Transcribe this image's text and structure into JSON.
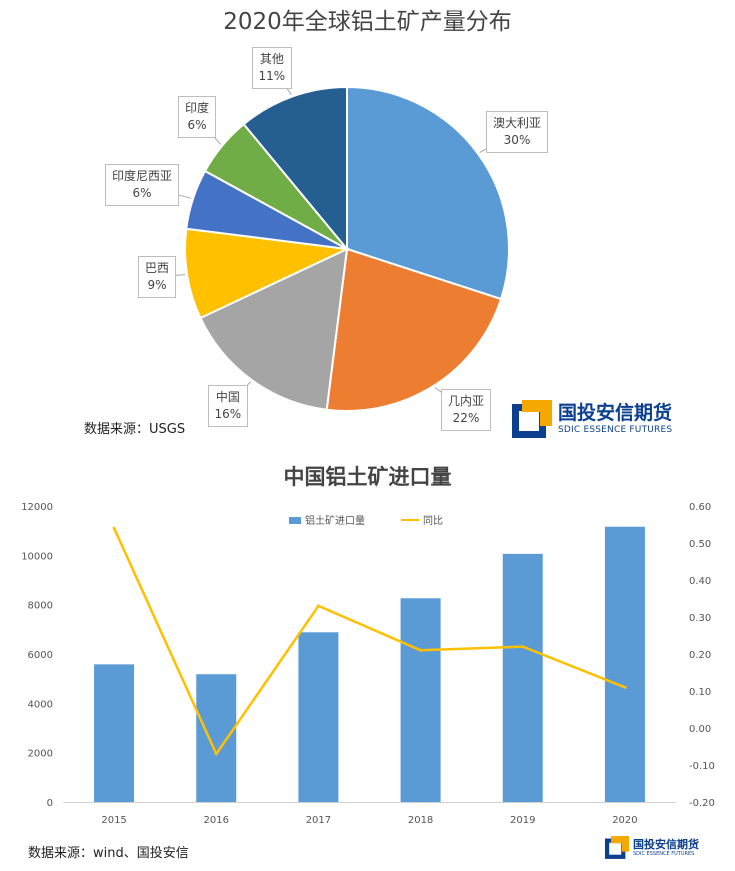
{
  "pie_chart": {
    "title": "2020年全球铝土矿产量分布",
    "source": "数据来源：USGS"
  },
  "bar_chart": {
    "title": "中国铝土矿进口量",
    "source": "数据来源：wind、国投安信",
    "legend": {
      "bars": "铝土矿进口量",
      "line": "同比"
    }
  },
  "logo": {
    "name_cn": "国投安信期货",
    "name_en": "SDIC ESSENCE FUTURES"
  },
  "colors": {
    "australia": "#5b9bd5",
    "guinea": "#ed7d31",
    "china": "#a5a5a5",
    "brazil": "#ffc000",
    "indonesia": "#4472c4",
    "india": "#70ad47",
    "others": "#255e91",
    "bars": "#5b9bd5",
    "line": "#ffc000",
    "logo": "#0b3f8f",
    "logo_accent": "#f5a800"
  },
  "chart_data": [
    {
      "type": "pie",
      "title": "2020年全球铝土矿产量分布",
      "slices": [
        {
          "label": "澳大利亚",
          "value": 30,
          "display": "30%"
        },
        {
          "label": "几内亚",
          "value": 22,
          "display": "22%"
        },
        {
          "label": "中国",
          "value": 16,
          "display": "16%"
        },
        {
          "label": "巴西",
          "value": 9,
          "display": "9%"
        },
        {
          "label": "印度尼西亚",
          "value": 6,
          "display": "6%"
        },
        {
          "label": "印度",
          "value": 6,
          "display": "6%"
        },
        {
          "label": "其他",
          "value": 11,
          "display": "11%"
        }
      ]
    },
    {
      "type": "bar",
      "title": "中国铝土矿进口量",
      "categories": [
        "2015",
        "2016",
        "2017",
        "2018",
        "2019",
        "2020"
      ],
      "series": [
        {
          "name": "铝土矿进口量",
          "type": "bar",
          "axis": "left",
          "values": [
            5580,
            5180,
            6880,
            8260,
            10060,
            11160
          ]
        },
        {
          "name": "同比",
          "type": "line",
          "axis": "right",
          "values": [
            0.54,
            -0.07,
            0.33,
            0.21,
            0.22,
            0.11
          ]
        }
      ],
      "y_left": {
        "min": 0,
        "max": 12000,
        "ticks": [
          "0",
          "2000",
          "4000",
          "6000",
          "8000",
          "10000",
          "12000"
        ]
      },
      "y_right": {
        "min": -0.2,
        "max": 0.6,
        "ticks": [
          "-0.20",
          "-0.10",
          "0.00",
          "0.10",
          "0.20",
          "0.30",
          "0.40",
          "0.50",
          "0.60"
        ]
      },
      "legend_position": "top-center",
      "grid": false
    }
  ]
}
